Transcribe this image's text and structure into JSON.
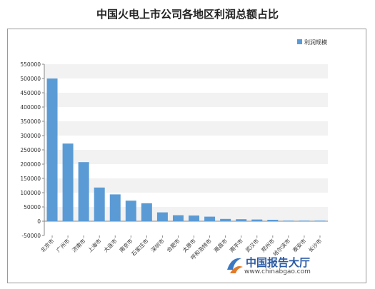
{
  "title": "中国火电上市公司各地区利润总额占比",
  "watermark": {
    "name": "中国报告大厅",
    "url": "www.chinabgao.com"
  },
  "chart_data": {
    "type": "bar",
    "title": "中国火电上市公司各地区利润总额占比",
    "categories": [
      "北京市",
      "广州市",
      "济南市",
      "上海市",
      "大连市",
      "南京市",
      "石家庄市",
      "深圳市",
      "合肥市",
      "太原市",
      "呼和浩特市",
      "南昌市",
      "南平市",
      "武汉市",
      "郑州市",
      "哈尔滨市",
      "泰安市",
      "长沙市"
    ],
    "series": [
      {
        "name": "利润规模",
        "values": [
          500000,
          272000,
          207000,
          118000,
          94000,
          72000,
          63000,
          31000,
          21000,
          20000,
          16000,
          8000,
          7000,
          6000,
          5000,
          2000,
          1000,
          1000
        ]
      }
    ],
    "ylim": [
      -50000,
      550000
    ],
    "yticks": [
      -50000,
      0,
      50000,
      100000,
      150000,
      200000,
      250000,
      300000,
      350000,
      400000,
      450000,
      500000,
      550000
    ],
    "xlabel": "",
    "ylabel": "",
    "legend_position": "top-right",
    "grid": "alternating horizontal bands",
    "bar_color": "#5b9bd5"
  }
}
